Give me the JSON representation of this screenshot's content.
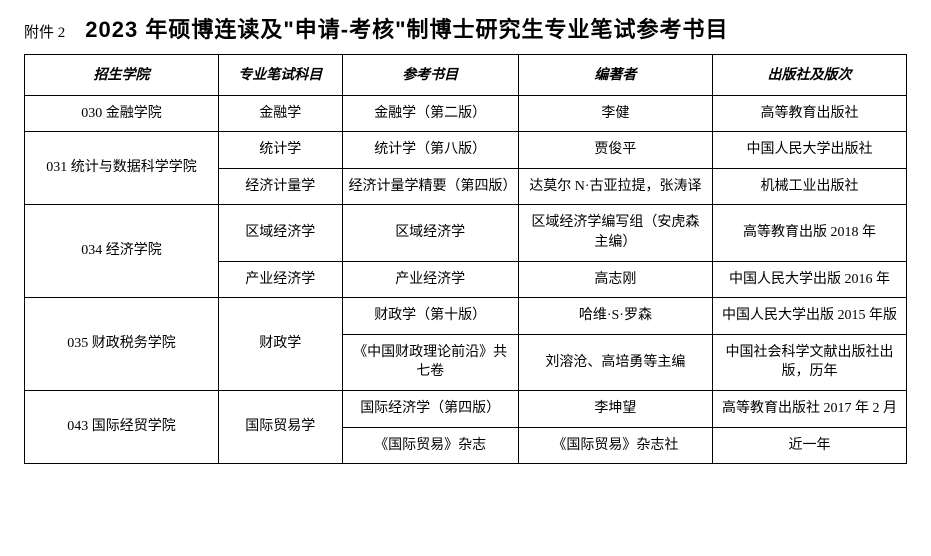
{
  "attachment_label": "附件 2",
  "title": "2023 年硕博连读及\"申请-考核\"制博士研究生专业笔试参考书目",
  "columns": [
    "招生学院",
    "专业笔试科目",
    "参考书目",
    "编著者",
    "出版社及版次"
  ],
  "rows": [
    {
      "college": "030 金融学院",
      "college_rowspan": 1,
      "subject": "金融学",
      "subject_rowspan": 1,
      "book": "金融学（第二版）",
      "author": "李健",
      "publisher": "高等教育出版社"
    },
    {
      "college": "031 统计与数据科学学院",
      "college_rowspan": 2,
      "subject": "统计学",
      "subject_rowspan": 1,
      "book": "统计学（第八版）",
      "author": "贾俊平",
      "publisher": "中国人民大学出版社"
    },
    {
      "subject": "经济计量学",
      "subject_rowspan": 1,
      "book": "经济计量学精要（第四版）",
      "author": "达莫尔 N·古亚拉提，张涛译",
      "publisher": "机械工业出版社"
    },
    {
      "college": "034 经济学院",
      "college_rowspan": 2,
      "subject": "区域经济学",
      "subject_rowspan": 1,
      "book": "区域经济学",
      "author": "区域经济学编写组（安虎森主编）",
      "publisher": "高等教育出版 2018 年"
    },
    {
      "subject": "产业经济学",
      "subject_rowspan": 1,
      "book": "产业经济学",
      "author": "高志刚",
      "publisher": "中国人民大学出版 2016 年"
    },
    {
      "college": "035 财政税务学院",
      "college_rowspan": 2,
      "subject": "财政学",
      "subject_rowspan": 2,
      "book": "财政学（第十版）",
      "author": "哈维·S·罗森",
      "publisher": "中国人民大学出版 2015 年版"
    },
    {
      "book": "《中国财政理论前沿》共七卷",
      "author": "刘溶沧、高培勇等主编",
      "publisher": "中国社会科学文献出版社出版，历年"
    },
    {
      "college": "043 国际经贸学院",
      "college_rowspan": 2,
      "subject": "国际贸易学",
      "subject_rowspan": 2,
      "book": "国际经济学（第四版）",
      "author": "李坤望",
      "publisher": "高等教育出版社 2017 年 2 月"
    },
    {
      "book": "《国际贸易》杂志",
      "author": "《国际贸易》杂志社",
      "publisher": "近一年"
    }
  ]
}
